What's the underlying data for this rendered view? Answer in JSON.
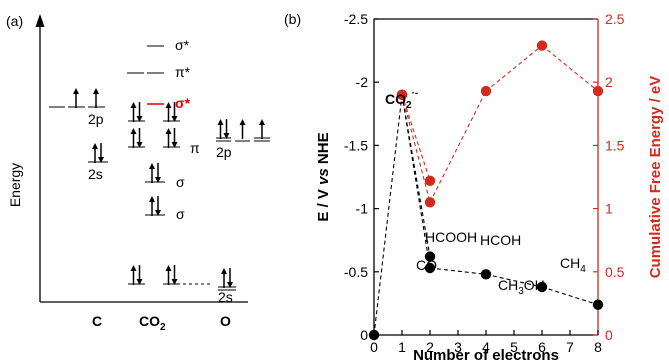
{
  "panel_a": {
    "label": "(a)",
    "y_axis_label": "Energy",
    "columns": [
      "C",
      "CO2",
      "O"
    ],
    "c_levels": [
      "2p",
      "2s"
    ],
    "co2_levels": [
      "σ*",
      "π*",
      "σ*",
      "π",
      "σ",
      "σ"
    ],
    "o_levels": [
      "2p",
      "2s"
    ],
    "highlight_color": "#e00000"
  },
  "chart_data": {
    "type": "scatter",
    "label": "(b)",
    "x": [
      0,
      1,
      2,
      2,
      2,
      4,
      6,
      8
    ],
    "xlabel": "Number of electrons",
    "xticks": [
      "0",
      "1",
      "2",
      "3",
      "4",
      "5",
      "6",
      "7",
      "8"
    ],
    "xlim": [
      0,
      8
    ],
    "ylabel_left_parts": [
      "E / V ",
      "vs",
      " NHE"
    ],
    "ylim_left": [
      0,
      -2.5
    ],
    "yticks_left": [
      "0",
      "-0.5",
      "-1",
      "-1.5",
      "-2",
      "-2.5"
    ],
    "ylabel_right": "Cumulative Free Energy / eV",
    "ylim_right": [
      0,
      2.5
    ],
    "yticks_right": [
      "0",
      "0.5",
      "1",
      "1.5",
      "2",
      "2.5"
    ],
    "left_color": "#000000",
    "right_color": "#d42a1e",
    "series": [
      {
        "axis": "left",
        "points": [
          [
            0,
            0
          ],
          [
            1,
            -1.9
          ],
          [
            2,
            -0.62
          ],
          [
            2,
            -0.53
          ],
          [
            4,
            -0.48
          ],
          [
            6,
            -0.38
          ],
          [
            8,
            -0.24
          ]
        ]
      },
      {
        "axis": "right",
        "points": [
          [
            1,
            1.9
          ],
          [
            2,
            1.22
          ],
          [
            2,
            1.05
          ],
          [
            4,
            1.93
          ],
          [
            6,
            2.29
          ],
          [
            8,
            1.93
          ]
        ]
      }
    ],
    "annotations": [
      {
        "text": "CO2",
        "sub": "2",
        "sup": "·-"
      },
      {
        "text": "HCOOH"
      },
      {
        "text": "CO"
      },
      {
        "text": "HCOH"
      },
      {
        "text": "CH3OH",
        "sub": "3"
      },
      {
        "text": "CH4",
        "sub": "4"
      }
    ],
    "annotation_labels": {
      "co2_main": "CO",
      "co2_sub": "2",
      "co2_sup": "·-",
      "hcooh": "HCOOH",
      "co": "CO",
      "hcoh": "HCOH",
      "ch3oh_a": "CH",
      "ch3oh_sub": "3",
      "ch3oh_b": "OH",
      "ch4_a": "CH",
      "ch4_sub": "4"
    }
  }
}
